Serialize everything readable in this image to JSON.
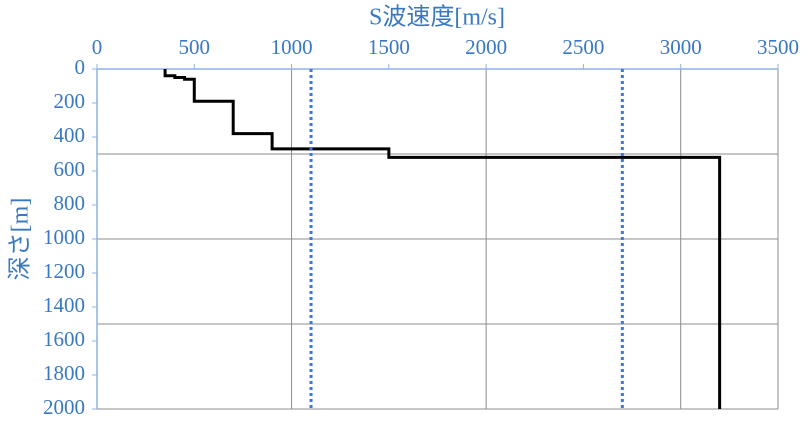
{
  "chart_data": {
    "type": "line",
    "title": "S波速度[m/s]",
    "y_label": "深さ[m]",
    "xlim": [
      0,
      3500
    ],
    "xticks": [
      0,
      500,
      1000,
      1500,
      2000,
      2500,
      3000,
      3500
    ],
    "ylim": [
      0,
      2000
    ],
    "yticks": [
      0,
      200,
      400,
      600,
      800,
      1000,
      1200,
      1400,
      1600,
      1800,
      2000
    ],
    "y_inverted": true,
    "x_axis_position": "top",
    "xgrid": [
      1000,
      2000,
      3000,
      3500
    ],
    "ygrid": [
      500,
      1000,
      1500,
      2000
    ],
    "series": [
      {
        "color": "#000000",
        "style": "solid",
        "x": [
          350,
          350,
          400,
          400,
          450,
          450,
          500,
          500,
          700,
          700,
          900,
          900,
          1500,
          1500,
          3200,
          3200
        ],
        "values": [
          0,
          40,
          40,
          50,
          50,
          60,
          60,
          190,
          190,
          380,
          380,
          470,
          470,
          520,
          520,
          2000
        ]
      },
      {
        "color": "#3c78d8",
        "style": "dotted",
        "x": [
          1100,
          1100
        ],
        "values": [
          0,
          2000
        ]
      },
      {
        "color": "#3c78d8",
        "style": "dotted",
        "x": [
          2700,
          2700
        ],
        "values": [
          0,
          2000
        ]
      }
    ]
  }
}
